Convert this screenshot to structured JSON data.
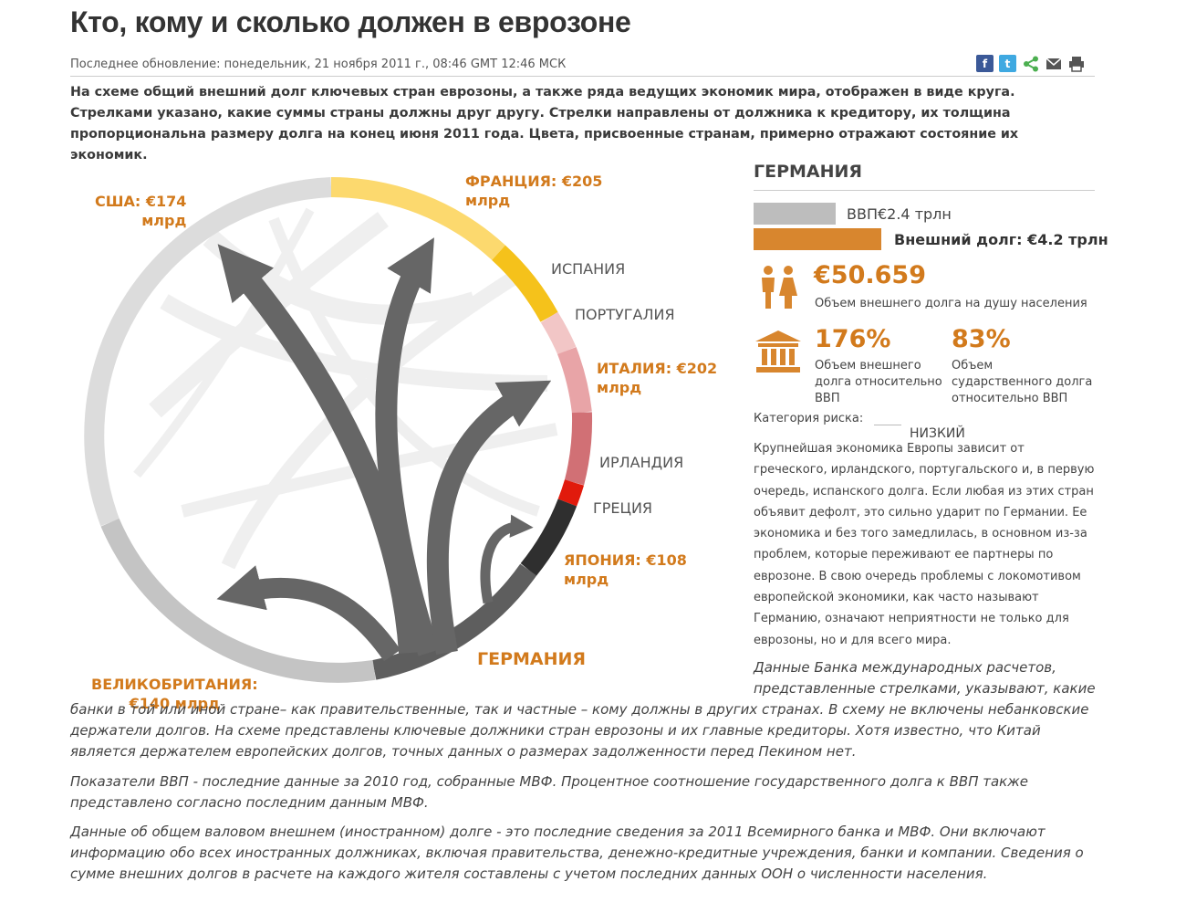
{
  "header": {
    "title": "Кто, кому и сколько должен в еврозоне",
    "updated": "Последнее обновление: понедельник, 21 ноября 2011 г., 08:46 GMT 12:46 МСК",
    "share_icons": [
      "facebook-icon",
      "twitter-icon",
      "share-icon",
      "email-icon",
      "print-icon"
    ],
    "intro": "На схеме общий внешний долг ключевых стран еврозоны, а также ряда ведущих экономик мира, отображен в виде круга. Стрелками указано, какие суммы страны должны друг другу. Стрелки направлены от должника к кредитору, их толщина пропорциональна размеру долга на конец июня 2011 года. Цвета, присвоенные странам, примерно отражают состояние их экономик."
  },
  "diagram": {
    "labels": {
      "usa": "США: €174\nмлрд",
      "france": "ФРАНЦИЯ: €205\nмлрд",
      "spain": "ИСПАНИЯ",
      "portugal": "ПОРТУГАЛИЯ",
      "italy": "ИТАЛИЯ: €202\nмлрд",
      "ireland": "ИРЛАНДИЯ",
      "greece": "ГРЕЦИЯ",
      "japan": "ЯПОНИЯ: €108\nмлрд",
      "germany": "ГЕРМАНИЯ",
      "uk": "ВЕЛИКОБРИТАНИЯ:\n€140 млрд"
    },
    "colors": {
      "usa": "#dcdcdc",
      "france": "#fcd96e",
      "spain": "#f5c21b",
      "portugal": "#f2c6c6",
      "italy": "#e8a4a7",
      "ireland": "#d17075",
      "greece": "#e11a0c",
      "japan": "#2f2f2f",
      "germany": "#5e5e5e",
      "uk": "#c4c4c4",
      "arrows": "#666666"
    }
  },
  "panel": {
    "country": "ГЕРМАНИЯ",
    "gdp_label": "ВВП€2.4 трлн",
    "debt_label": "Внешний долг: €4.2 трлн",
    "per_capita_value": "€50.659",
    "per_capita_label": "Объем внешнего долга на душу населения",
    "ext_debt_pct": "176%",
    "ext_debt_label": "Объем внешнего\nдолга относительно\nВВП",
    "gov_debt_pct": "83%",
    "gov_debt_label": "Объем\nсударственного долга\nотносительно ВВП",
    "risk_label": "Категория риска:",
    "risk_value": "НИЗКИЙ",
    "description": "Крупнейшая экономика Европы зависит от греческого, ирландского, португальского и, в первую очередь, испанского долга. Если любая из этих стран объявит дефолт, это сильно ударит по Германии. Ее экономика и без того замедлилась, в основном из-за проблем, которые переживают ее партнеры по еврозоне. В свою очередь проблемы с локомотивом европейской экономики, как часто называют Германию, означают неприятности не только для еврозоны, но и для всего мира.",
    "icons": [
      "people-icon",
      "bank-icon"
    ]
  },
  "notes": {
    "bis_start": "Данные Банка международных расчетов,\nпредставленные стрелками, указывают, какие",
    "bis_rest": "банки в той или иной стране– как правительственные, так и частные – кому должны в других странах. В схему не включены небанковские держатели долгов. На схеме представлены ключевые должники стран еврозоны и их главные кредиторы. Хотя известно, что Китай является держателем европейских долгов, точных данных о размерах задолженности перед Пекином нет.",
    "gdp_note": "Показатели ВВП - последние данные за 2010 год, собранные МВФ. Процентное соотношение государственного долга к ВВП также представлено согласно последним данным МВФ.",
    "debt_note": "Данные об общем валовом внешнем (иностранном) долге - это последние сведения за 2011 Всемирного банка и МВФ. Они включают информацию обо всех иностранных должниках, включая правительства, денежно-кредитные учреждения, банки и компании. Сведения о сумме внешних долгов в расчете на каждого жителя составлены с учетом последних данных ООН о численности населения."
  }
}
